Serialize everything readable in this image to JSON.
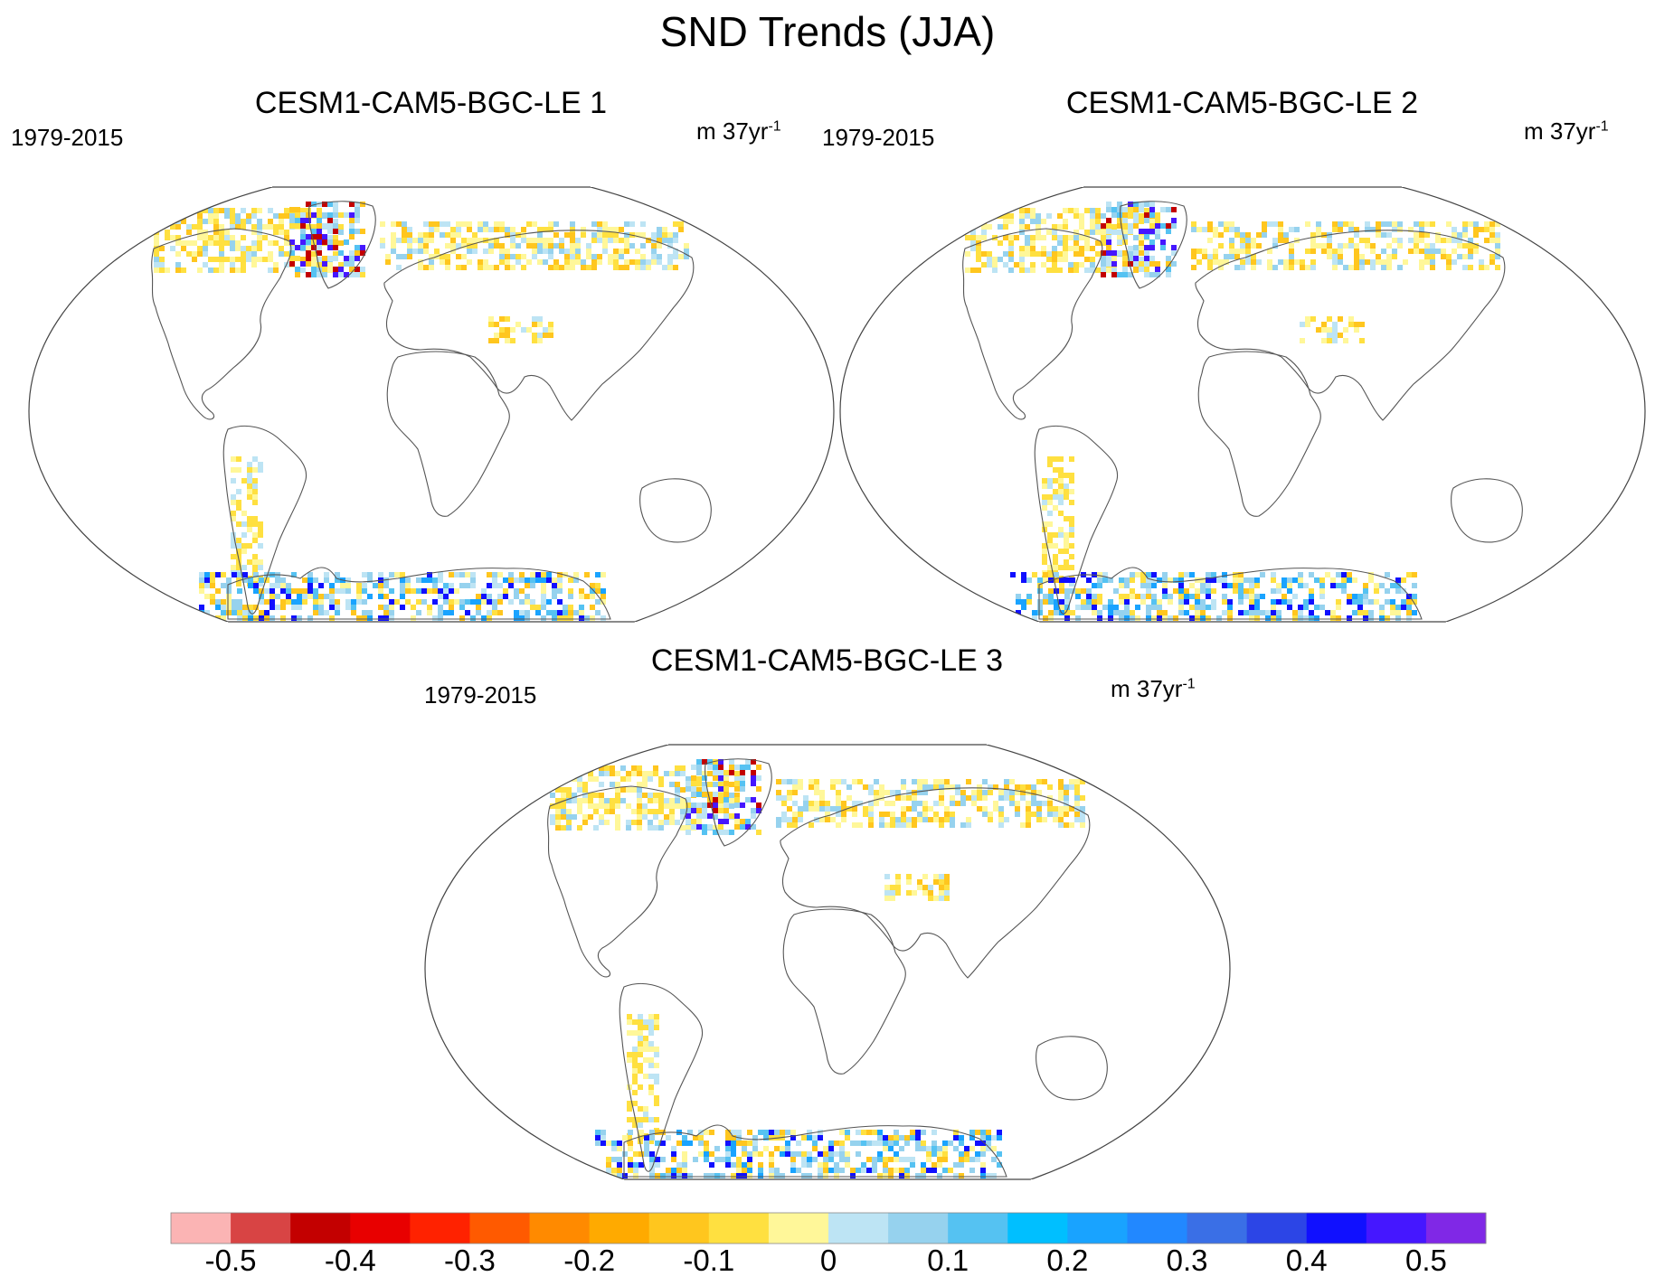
{
  "figure": {
    "title": "SND Trends (JJA)"
  },
  "panels": [
    {
      "title": "CESM1-CAM5-BGC-LE 1",
      "period": "1979-2015",
      "units_base": "m 37yr",
      "units_exp": "-1"
    },
    {
      "title": "CESM1-CAM5-BGC-LE 2",
      "period": "1979-2015",
      "units_base": "m 37yr",
      "units_exp": "-1"
    },
    {
      "title": "CESM1-CAM5-BGC-LE 3",
      "period": "1979-2015",
      "units_base": "m 37yr",
      "units_exp": "-1"
    }
  ],
  "colorbar": {
    "colors": [
      "#fbb4b4",
      "#d84444",
      "#c30000",
      "#e80000",
      "#ff2200",
      "#ff5a00",
      "#ff8a00",
      "#ffaa00",
      "#ffc61e",
      "#ffe040",
      "#fff799",
      "#bde4f4",
      "#96d2ee",
      "#55c2f2",
      "#00bfff",
      "#19a3ff",
      "#2288ff",
      "#3a6fe6",
      "#2c45e6",
      "#1010ff",
      "#4517ff",
      "#8028e6"
    ],
    "tick_labels": [
      "-0.5",
      "-0.4",
      "-0.3",
      "-0.2",
      "-0.1",
      "0",
      "0.1",
      "0.2",
      "0.3",
      "0.4",
      "0.5"
    ]
  },
  "chart_data": {
    "type": "heatmap",
    "title": "SND Trends (JJA)",
    "variable": "SND",
    "season": "JJA",
    "period": "1979-2015",
    "units": "m 37yr-1",
    "levels": [
      -0.55,
      -0.5,
      -0.45,
      -0.4,
      -0.35,
      -0.3,
      -0.25,
      -0.2,
      -0.15,
      -0.1,
      -0.05,
      0,
      0.05,
      0.1,
      0.15,
      0.2,
      0.25,
      0.3,
      0.35,
      0.4,
      0.45,
      0.5,
      0.55
    ],
    "panels": [
      "CESM1-CAM5-BGC-LE 1",
      "CESM1-CAM5-BGC-LE 2",
      "CESM1-CAM5-BGC-LE 3"
    ]
  }
}
